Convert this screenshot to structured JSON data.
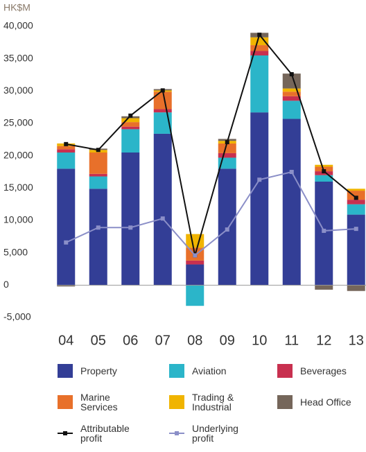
{
  "chart_data": {
    "type": "bar",
    "stacked": true,
    "y_label": "HK$M",
    "categories": [
      "04",
      "05",
      "06",
      "07",
      "08",
      "09",
      "10",
      "11",
      "12",
      "13"
    ],
    "ylim": [
      -5000,
      40000
    ],
    "yticks": [
      {
        "value": -5000,
        "label": "-5,000"
      },
      0,
      {
        "value": 5000,
        "label": "5,000"
      },
      {
        "value": 10000,
        "label": "10,000"
      },
      {
        "value": 15000,
        "label": "15,000"
      },
      {
        "value": 20000,
        "label": "20,000"
      },
      {
        "value": 25000,
        "label": "25,000"
      },
      {
        "value": 30000,
        "label": "30,000"
      },
      {
        "value": 35000,
        "label": "35,000"
      },
      {
        "value": 40000,
        "label": "40,000"
      }
    ],
    "grid": false,
    "series": [
      {
        "name": "Property",
        "type": "bar",
        "color": "#333e96",
        "values": [
          18000,
          14900,
          20500,
          23400,
          3200,
          18000,
          26700,
          25700,
          16000,
          10900
        ]
      },
      {
        "name": "Aviation",
        "type": "bar",
        "color": "#2bb5c9",
        "values": [
          2500,
          1900,
          3600,
          3300,
          -3200,
          1700,
          8800,
          2800,
          1000,
          1600
        ]
      },
      {
        "name": "Beverages",
        "type": "bar",
        "color": "#c8304f",
        "values": [
          500,
          400,
          400,
          500,
          600,
          700,
          700,
          700,
          600,
          700
        ]
      },
      {
        "name": "Marine Services",
        "type": "bar",
        "color": "#e8702a",
        "values": [
          500,
          3300,
          700,
          2700,
          2000,
          1500,
          900,
          700,
          700,
          1400
        ]
      },
      {
        "name": "Trading & Industrial",
        "type": "bar",
        "color": "#f0b400",
        "values": [
          400,
          400,
          600,
          200,
          2100,
          400,
          1200,
          500,
          300,
          300
        ]
      },
      {
        "name": "Head Office",
        "type": "bar",
        "color": "#75665a",
        "values": [
          -200,
          200,
          300,
          200,
          0,
          300,
          700,
          2300,
          -700,
          -900
        ]
      },
      {
        "name": "Attributable profit",
        "type": "line",
        "color": "#111111",
        "values": [
          21800,
          20900,
          26200,
          30100,
          4600,
          22100,
          38700,
          32600,
          17600,
          13500
        ]
      },
      {
        "name": "Underlying profit",
        "type": "line",
        "color": "#8b8fc8",
        "values": [
          6600,
          8900,
          8900,
          10300,
          4600,
          8600,
          16300,
          17500,
          8400,
          8700
        ]
      }
    ]
  }
}
